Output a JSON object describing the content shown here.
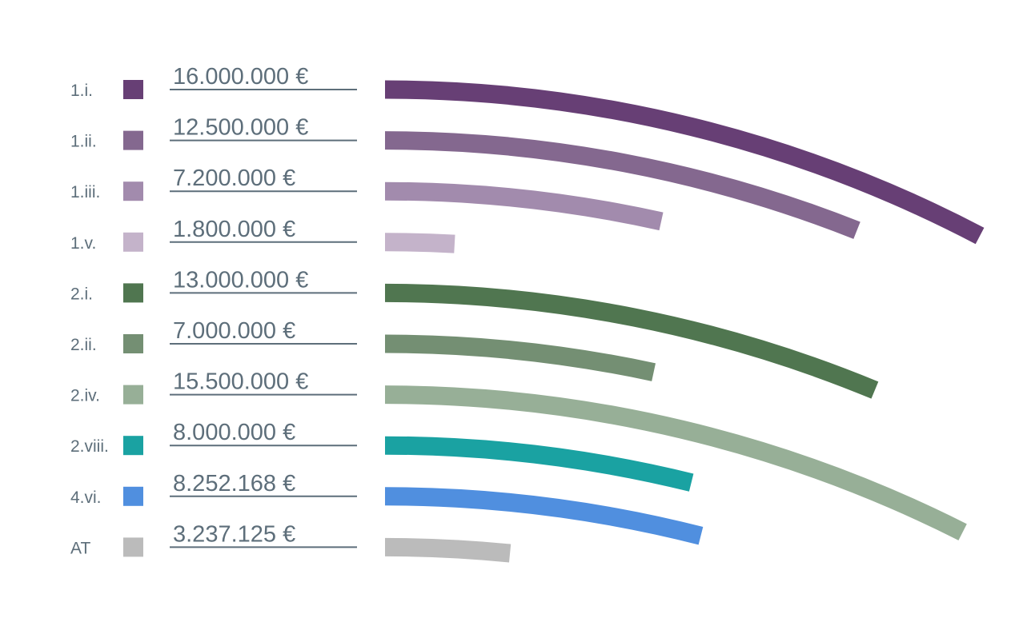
{
  "chart_data": {
    "type": "bar",
    "categories": [
      "1.i.",
      "1.ii.",
      "1.iii.",
      "1.v.",
      "2.i.",
      "2.ii.",
      "2.iv.",
      "2.viii.",
      "4.vi.",
      "AT"
    ],
    "values": [
      16000000,
      12500000,
      7200000,
      1800000,
      13000000,
      7000000,
      15500000,
      8000000,
      8252168,
      3237125
    ],
    "value_labels": [
      "16.000.000 €",
      "12.500.000 €",
      "7.200.000 €",
      "1.800.000 €",
      "13.000.000 €",
      "7.000.000 €",
      "15.500.000 €",
      "8.000.000 €",
      "8.252.168 €",
      "3.237.125 €"
    ],
    "colors": [
      "#673f75",
      "#84688f",
      "#a28bad",
      "#c4b3ca",
      "#507650",
      "#748f73",
      "#97af97",
      "#1aa2a2",
      "#508fdf",
      "#bbbbbb"
    ],
    "title": "",
    "xlabel": "",
    "ylabel": "",
    "legend": "left"
  }
}
